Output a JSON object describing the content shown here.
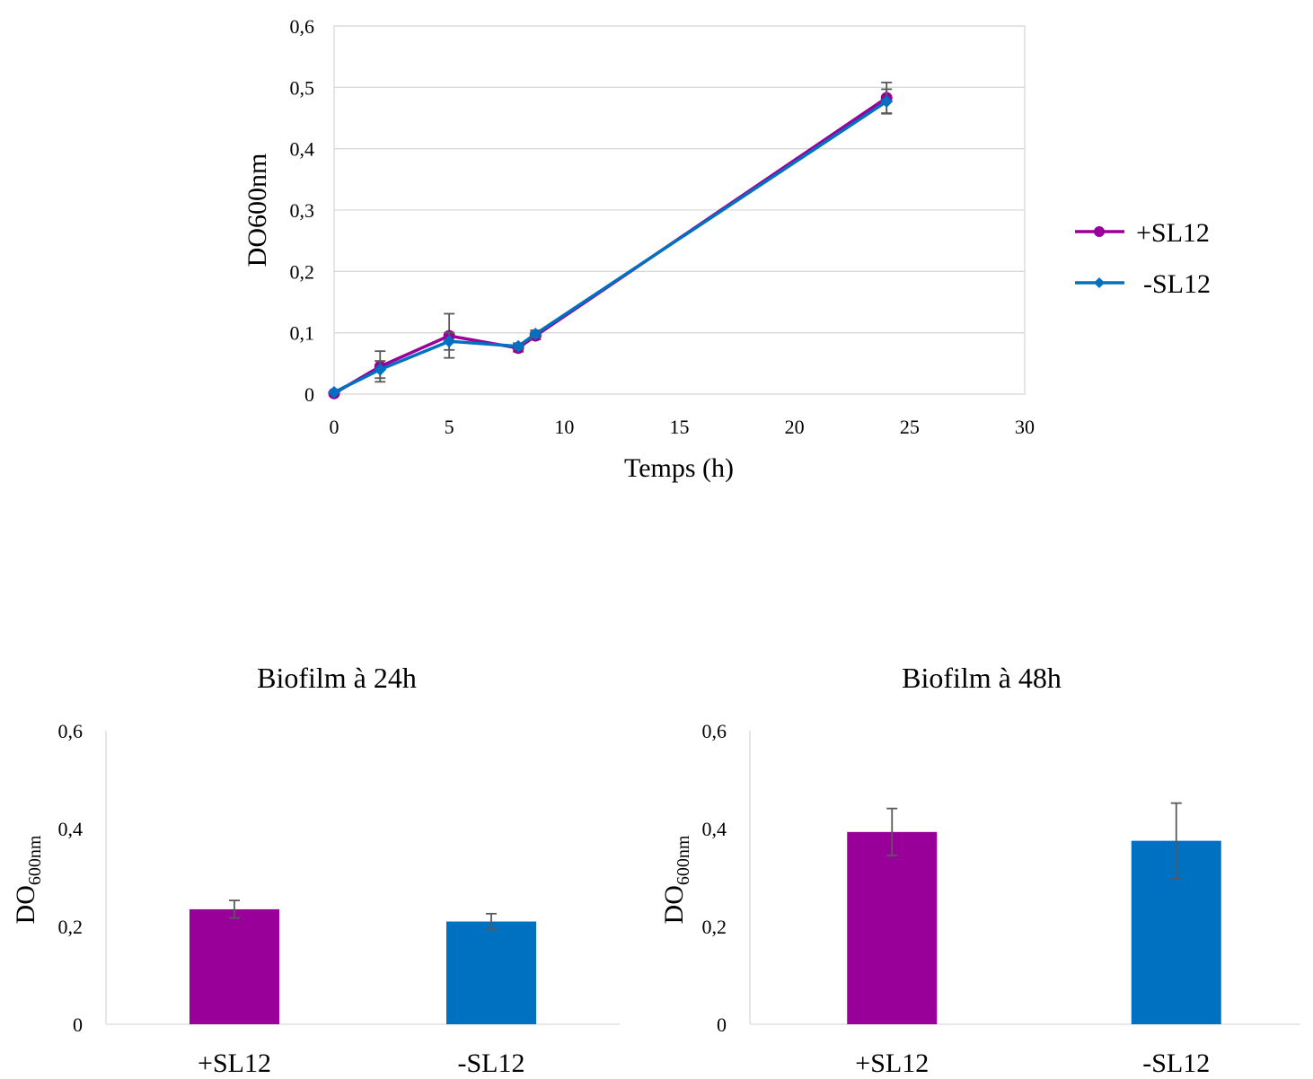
{
  "chart_data": [
    {
      "type": "line",
      "title": "",
      "xlabel": "Temps (h)",
      "ylabel": "DO600nm",
      "xlim": [
        0,
        30
      ],
      "ylim": [
        0,
        0.6
      ],
      "x_ticks": [
        "0",
        "5",
        "10",
        "15",
        "20",
        "25",
        "30"
      ],
      "y_ticks": [
        "0",
        "0,1",
        "0,2",
        "0,3",
        "0,4",
        "0,5",
        "0,6"
      ],
      "grid": true,
      "legend": "right",
      "series": [
        {
          "name": "+SL12",
          "color": "#990099",
          "marker": "circle",
          "points": [
            {
              "x": 0,
              "y": 0.001,
              "err": 0
            },
            {
              "x": 2,
              "y": 0.045,
              "err": 0.025
            },
            {
              "x": 5,
              "y": 0.095,
              "err": 0.036
            },
            {
              "x": 8,
              "y": 0.075,
              "err": 0.006
            },
            {
              "x": 8.75,
              "y": 0.095,
              "err": 0.006
            },
            {
              "x": 24,
              "y": 0.483,
              "err": 0.025
            }
          ]
        },
        {
          "name": "-SL12",
          "color": "#0070c0",
          "marker": "diamond",
          "points": [
            {
              "x": 0,
              "y": 0.003,
              "err": 0
            },
            {
              "x": 2,
              "y": 0.04,
              "err": 0.014
            },
            {
              "x": 5,
              "y": 0.086,
              "err": 0.014
            },
            {
              "x": 8,
              "y": 0.078,
              "err": 0.005
            },
            {
              "x": 8.75,
              "y": 0.098,
              "err": 0.006
            },
            {
              "x": 24,
              "y": 0.477,
              "err": 0.02
            }
          ]
        }
      ]
    },
    {
      "type": "bar",
      "title": "Biofilm à 24h",
      "ylabel_main": "DO",
      "ylabel_sub": "600nm",
      "ylim": [
        0,
        0.6
      ],
      "y_ticks": [
        "0",
        "0,2",
        "0,4",
        "0,6"
      ],
      "grid": false,
      "categories": [
        "+SL12",
        "-SL12"
      ],
      "values": [
        0.235,
        0.21
      ],
      "errors": [
        0.018,
        0.016
      ],
      "colors": [
        "#990099",
        "#0070c0"
      ]
    },
    {
      "type": "bar",
      "title": "Biofilm à 48h",
      "ylabel_main": "DO",
      "ylabel_sub": "600nm",
      "ylim": [
        0,
        0.6
      ],
      "y_ticks": [
        "0",
        "0,2",
        "0,4",
        "0,6"
      ],
      "grid": false,
      "categories": [
        "+SL12",
        "-SL12"
      ],
      "values": [
        0.393,
        0.375
      ],
      "errors": [
        0.048,
        0.077
      ],
      "colors": [
        "#990099",
        "#0070c0"
      ]
    }
  ]
}
